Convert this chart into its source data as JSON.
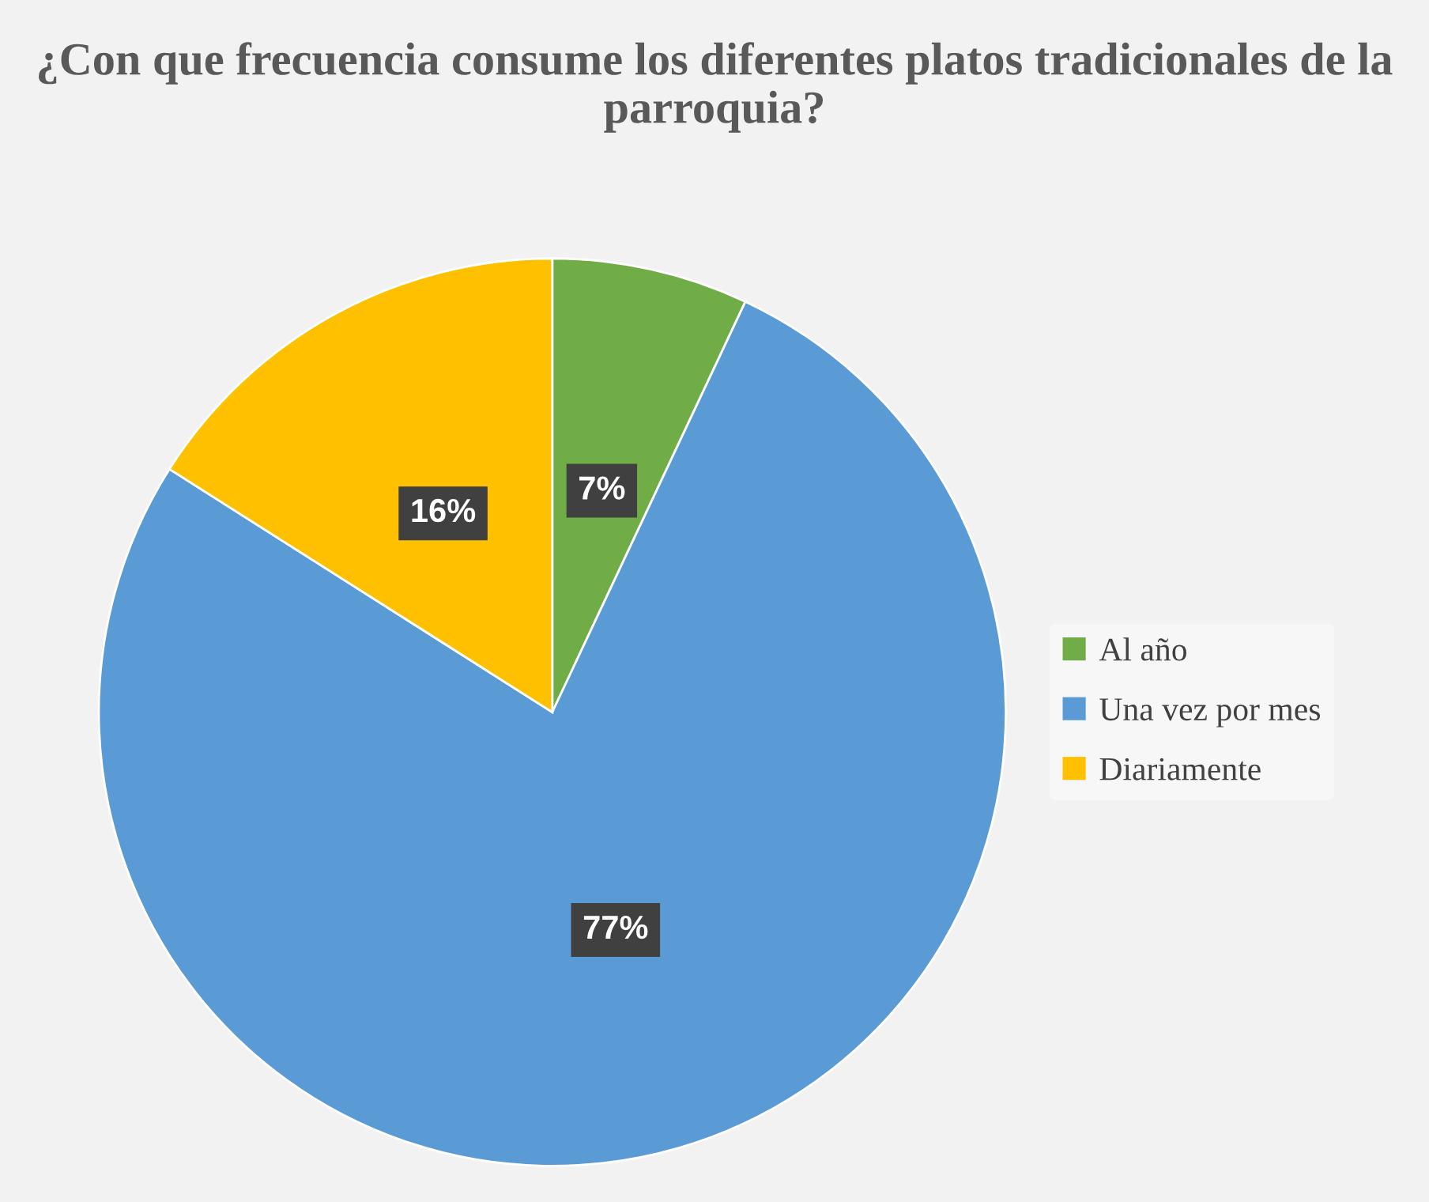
{
  "chart_data": {
    "type": "pie",
    "title": "¿Con que frecuencia consume los diferentes platos tradicionales de la parroquia?",
    "categories": [
      "Al año",
      "Una vez por mes",
      "Diariamente"
    ],
    "values": [
      7,
      77,
      16
    ],
    "colors": [
      "#70ad47",
      "#5b9bd5",
      "#ffc000"
    ],
    "value_labels": [
      "7%",
      "77%",
      "16%"
    ],
    "legend": "right"
  }
}
